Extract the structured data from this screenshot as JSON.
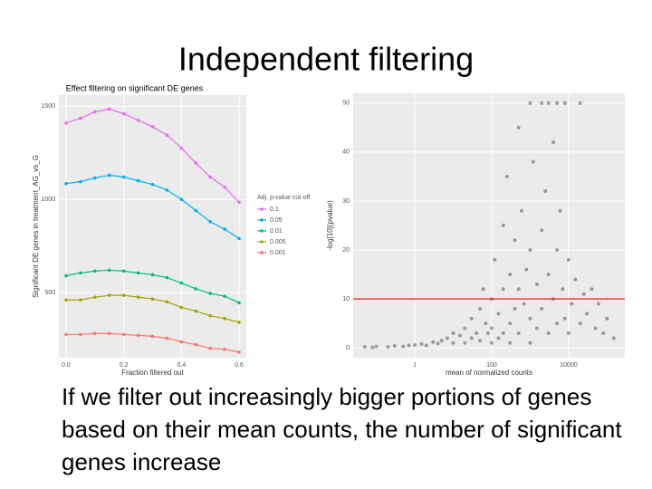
{
  "slide_title": "Independent filtering",
  "body_text": "If we filter out increasingly bigger portions of genes based on their mean counts, the number of significant genes increase",
  "chart_data": [
    {
      "type": "line",
      "title": "Effect filtering on significant DE genes",
      "x_label": "Fraction filtered out",
      "y_label": "Significant DE genes in treatment_AG_vs_G",
      "legend_title": "Adj. p-value cut-off",
      "legend": "right",
      "grid": true,
      "x": [
        0,
        0.05,
        0.1,
        0.15,
        0.2,
        0.25,
        0.3,
        0.35,
        0.4,
        0.45,
        0.5,
        0.55,
        0.6
      ],
      "xlim": [
        -0.025,
        0.625
      ],
      "xticks": [
        {
          "value": 0,
          "label": "0.0"
        },
        0.2,
        0.4,
        0.6
      ],
      "ylim": [
        150,
        1560
      ],
      "yticks": [
        500,
        1000,
        1500
      ],
      "series": [
        {
          "name": "0.1",
          "color": "#e76bf3",
          "values": [
            1410,
            1435,
            1470,
            1485,
            1460,
            1425,
            1390,
            1345,
            1275,
            1195,
            1120,
            1065,
            985
          ]
        },
        {
          "name": "0.05",
          "color": "#00b0f6",
          "values": [
            1085,
            1095,
            1115,
            1130,
            1120,
            1100,
            1080,
            1050,
            1000,
            940,
            880,
            840,
            790
          ]
        },
        {
          "name": "0.01",
          "color": "#00bf7d",
          "values": [
            590,
            605,
            615,
            620,
            615,
            605,
            595,
            580,
            550,
            520,
            495,
            480,
            445
          ]
        },
        {
          "name": "0.005",
          "color": "#a3a500",
          "values": [
            460,
            460,
            475,
            485,
            485,
            475,
            465,
            450,
            420,
            400,
            375,
            360,
            340
          ]
        },
        {
          "name": "0.001",
          "color": "#f8766d",
          "values": [
            275,
            275,
            280,
            280,
            275,
            270,
            265,
            255,
            235,
            220,
            200,
            195,
            180
          ]
        }
      ]
    },
    {
      "type": "scatter",
      "x_label": "mean of normalized counts",
      "y_label": "-log[10](pvalue)",
      "log_x": true,
      "grid": true,
      "color": "#000000",
      "xlim": [
        0.025,
        290000
      ],
      "xticks": [
        1,
        100,
        10000
      ],
      "ylim": [
        -2,
        52
      ],
      "yticks": [
        0,
        10,
        20,
        30,
        40,
        50
      ],
      "hline": {
        "value": 10,
        "color": "#e41a1c"
      },
      "x": [
        0.05,
        0.08,
        0.1,
        0.2,
        0.3,
        0.5,
        0.7,
        1,
        1.5,
        2,
        3,
        4,
        5,
        7,
        10,
        10,
        15,
        20,
        20,
        30,
        30,
        40,
        50,
        50,
        60,
        70,
        80,
        100,
        100,
        100,
        120,
        150,
        150,
        200,
        200,
        200,
        250,
        300,
        300,
        300,
        400,
        400,
        500,
        500,
        500,
        600,
        700,
        800,
        1000,
        1000,
        1000,
        1000,
        1200,
        1500,
        1500,
        2000,
        2000,
        2000,
        2500,
        3000,
        3000,
        3000,
        4000,
        4000,
        5000,
        5000,
        5000,
        6000,
        7000,
        8000,
        8000,
        10000,
        10000,
        12000,
        15000,
        20000,
        20000,
        25000,
        30000,
        40000,
        50000,
        60000,
        80000,
        100000,
        150000
      ],
      "values": [
        0.2,
        0.1,
        0.3,
        0.2,
        0.4,
        0.3,
        0.5,
        0.6,
        0.8,
        0.5,
        1.2,
        0.9,
        1.5,
        2,
        1,
        3,
        2.5,
        4,
        1,
        6,
        2,
        3,
        8,
        1.5,
        12,
        5,
        3,
        10,
        4,
        1,
        18,
        7,
        2,
        25,
        12,
        3,
        35,
        15,
        5,
        1,
        22,
        8,
        45,
        12,
        3,
        28,
        9,
        16,
        50,
        20,
        6,
        1,
        38,
        13,
        4,
        50,
        24,
        8,
        32,
        50,
        15,
        3,
        42,
        10,
        50,
        20,
        5,
        28,
        12,
        50,
        6,
        18,
        3,
        9,
        14,
        50,
        5,
        11,
        7,
        12,
        4,
        9,
        3,
        6,
        2
      ]
    }
  ]
}
